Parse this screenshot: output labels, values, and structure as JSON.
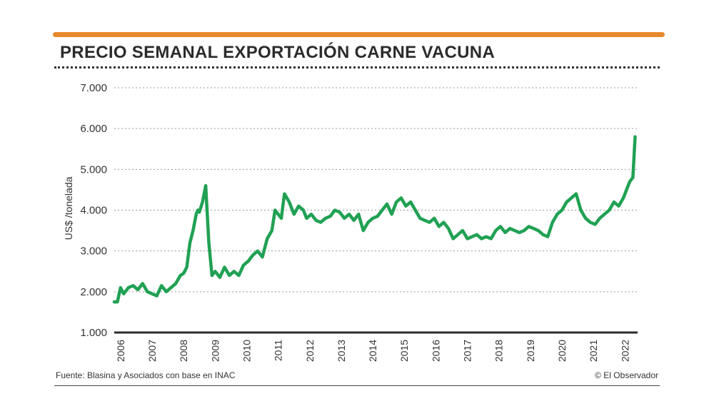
{
  "colors": {
    "accent": "#e8892e",
    "line": "#20a153",
    "text": "#2b2b2b"
  },
  "title": "PRECIO SEMANAL EXPORTACIÓN CARNE VACUNA",
  "source": "Fuente: Blasina y Asociados con base en INAC",
  "credit": "© El Observador",
  "chart_data": {
    "type": "line",
    "title": "PRECIO SEMANAL EXPORTACIÓN CARNE VACUNA",
    "xlabel": "",
    "ylabel": "US$ /tonelada",
    "ylim": [
      1000,
      7000
    ],
    "xlim": [
      2005.9,
      2022.5
    ],
    "y_ticks": [
      1000,
      2000,
      3000,
      4000,
      5000,
      6000,
      7000
    ],
    "y_tick_labels": [
      "1.000",
      "2.000",
      "3.000",
      "4.000",
      "5.000",
      "6.000",
      "7.000"
    ],
    "x_ticks": [
      "2006",
      "2007",
      "2008",
      "2009",
      "2010",
      "2011",
      "2012",
      "2013",
      "2014",
      "2015",
      "2016",
      "2017",
      "2018",
      "2019",
      "2020",
      "2021",
      "2022"
    ],
    "grid": "horizontal dotted",
    "series": [
      {
        "name": "Precio semanal exportación",
        "x": [
          2005.9,
          2006.0,
          2006.1,
          2006.2,
          2006.35,
          2006.5,
          2006.65,
          2006.8,
          2006.95,
          2007.1,
          2007.25,
          2007.4,
          2007.55,
          2007.7,
          2007.85,
          2008.0,
          2008.1,
          2008.2,
          2008.3,
          2008.4,
          2008.5,
          2008.55,
          2008.6,
          2008.7,
          2008.8,
          2008.9,
          2009.0,
          2009.1,
          2009.25,
          2009.4,
          2009.55,
          2009.7,
          2009.85,
          2010.0,
          2010.15,
          2010.3,
          2010.45,
          2010.6,
          2010.75,
          2010.9,
          2011.0,
          2011.1,
          2011.2,
          2011.3,
          2011.45,
          2011.6,
          2011.75,
          2011.9,
          2012.0,
          2012.15,
          2012.3,
          2012.45,
          2012.6,
          2012.75,
          2012.9,
          2013.05,
          2013.2,
          2013.35,
          2013.5,
          2013.65,
          2013.8,
          2013.95,
          2014.1,
          2014.25,
          2014.4,
          2014.55,
          2014.7,
          2014.85,
          2015.0,
          2015.15,
          2015.3,
          2015.45,
          2015.6,
          2015.75,
          2015.9,
          2016.05,
          2016.2,
          2016.35,
          2016.5,
          2016.65,
          2016.8,
          2016.95,
          2017.1,
          2017.25,
          2017.4,
          2017.55,
          2017.7,
          2017.85,
          2018.0,
          2018.15,
          2018.3,
          2018.45,
          2018.6,
          2018.75,
          2018.9,
          2019.05,
          2019.2,
          2019.35,
          2019.5,
          2019.65,
          2019.8,
          2019.95,
          2020.1,
          2020.25,
          2020.4,
          2020.55,
          2020.7,
          2020.85,
          2021.0,
          2021.15,
          2021.3,
          2021.45,
          2021.6,
          2021.75,
          2021.9,
          2022.05,
          2022.15,
          2022.25,
          2022.35,
          2022.42
        ],
        "values": [
          1750,
          1750,
          2100,
          1950,
          2100,
          2150,
          2050,
          2200,
          2000,
          1950,
          1900,
          2150,
          2000,
          2100,
          2200,
          2400,
          2450,
          2600,
          3200,
          3500,
          3900,
          4000,
          3950,
          4200,
          4600,
          3200,
          2400,
          2500,
          2350,
          2600,
          2400,
          2500,
          2400,
          2650,
          2750,
          2900,
          3000,
          2850,
          3300,
          3500,
          4000,
          3900,
          3800,
          4400,
          4200,
          3900,
          4100,
          4000,
          3800,
          3900,
          3750,
          3700,
          3800,
          3850,
          4000,
          3950,
          3800,
          3900,
          3750,
          3900,
          3500,
          3700,
          3800,
          3850,
          4000,
          4150,
          3900,
          4200,
          4300,
          4100,
          4200,
          4000,
          3800,
          3750,
          3700,
          3800,
          3600,
          3700,
          3550,
          3300,
          3400,
          3500,
          3300,
          3350,
          3400,
          3300,
          3350,
          3300,
          3500,
          3600,
          3450,
          3550,
          3500,
          3450,
          3500,
          3600,
          3550,
          3500,
          3400,
          3350,
          3700,
          3900,
          4000,
          4200,
          4300,
          4400,
          4000,
          3800,
          3700,
          3650,
          3800,
          3900,
          4000,
          4200,
          4100,
          4300,
          4500,
          4700,
          4800,
          5800
        ]
      }
    ]
  }
}
